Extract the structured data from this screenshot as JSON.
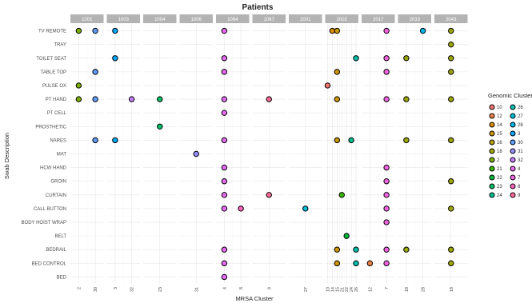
{
  "chart_data": {
    "type": "scatter",
    "title": "Patients",
    "xlabel": "MRSA Cluster",
    "ylabel": "Swab Description",
    "legend_title": "Genomic Cluster",
    "legend_position": "right",
    "grid": true,
    "facets": [
      {
        "label": "1001",
        "x_ticks": [
          "2",
          "30"
        ]
      },
      {
        "label": "1003",
        "x_ticks": [
          "3",
          "32"
        ]
      },
      {
        "label": "1004",
        "x_ticks": [
          "23"
        ]
      },
      {
        "label": "1006",
        "x_ticks": [
          "31"
        ]
      },
      {
        "label": "1064",
        "x_ticks": [
          "4",
          "8"
        ]
      },
      {
        "label": "1067",
        "x_ticks": [
          "9"
        ]
      },
      {
        "label": "2001",
        "x_ticks": [
          "27"
        ]
      },
      {
        "label": "2002",
        "x_ticks": [
          "10",
          "14",
          "15",
          "21",
          "22",
          "24",
          "26"
        ]
      },
      {
        "label": "2017",
        "x_ticks": [
          "12",
          "7"
        ]
      },
      {
        "label": "2033",
        "x_ticks": [
          "18",
          "28"
        ]
      },
      {
        "label": "2043",
        "x_ticks": [
          "18"
        ]
      }
    ],
    "y_categories": [
      "TV REMOTE",
      "TRAY",
      "TOILET SEAT",
      "TABLE TOP",
      "PULSE OX",
      "PT HAND",
      "PT CELL",
      "PROSTHETIC",
      "NARES",
      "MAT",
      "HCW HAND",
      "GROIN",
      "CURTAIN",
      "CALL BUTTON",
      "BODY HOIST WRAP",
      "BELT",
      "BEDRAIL",
      "BED CONTROL",
      "BED"
    ],
    "legend": [
      {
        "label": "10",
        "color": "#F8766D"
      },
      {
        "label": "12",
        "color": "#EE8043"
      },
      {
        "label": "14",
        "color": "#DE8C00"
      },
      {
        "label": "15",
        "color": "#CD9600"
      },
      {
        "label": "16",
        "color": "#B7A000"
      },
      {
        "label": "18",
        "color": "#9DA700"
      },
      {
        "label": "2",
        "color": "#7CAE00"
      },
      {
        "label": "21",
        "color": "#39B600"
      },
      {
        "label": "22",
        "color": "#00BA38"
      },
      {
        "label": "23",
        "color": "#00BE67"
      },
      {
        "label": "24",
        "color": "#00C08B"
      },
      {
        "label": "26",
        "color": "#00C0AA"
      },
      {
        "label": "27",
        "color": "#00BCD8"
      },
      {
        "label": "28",
        "color": "#00B6EB"
      },
      {
        "label": "3",
        "color": "#00A9FF"
      },
      {
        "label": "30",
        "color": "#619CFF"
      },
      {
        "label": "31",
        "color": "#9590FF"
      },
      {
        "label": "32",
        "color": "#C77CFF"
      },
      {
        "label": "4",
        "color": "#E76BF3"
      },
      {
        "label": "7",
        "color": "#F564E3"
      },
      {
        "label": "8",
        "color": "#FF62BC"
      },
      {
        "label": "9",
        "color": "#FF6A98"
      }
    ],
    "points": [
      {
        "facet": "1001",
        "x": "2",
        "y": "TV REMOTE",
        "cluster": "2"
      },
      {
        "facet": "1001",
        "x": "30",
        "y": "TV REMOTE",
        "cluster": "30"
      },
      {
        "facet": "1001",
        "x": "30",
        "y": "TABLE TOP",
        "cluster": "30"
      },
      {
        "facet": "1001",
        "x": "2",
        "y": "PULSE OX",
        "cluster": "2"
      },
      {
        "facet": "1001",
        "x": "2",
        "y": "PT HAND",
        "cluster": "2"
      },
      {
        "facet": "1001",
        "x": "30",
        "y": "PT HAND",
        "cluster": "30"
      },
      {
        "facet": "1001",
        "x": "30",
        "y": "NARES",
        "cluster": "30"
      },
      {
        "facet": "1003",
        "x": "3",
        "y": "TV REMOTE",
        "cluster": "3"
      },
      {
        "facet": "1003",
        "x": "3",
        "y": "TOILET SEAT",
        "cluster": "3"
      },
      {
        "facet": "1003",
        "x": "32",
        "y": "PT HAND",
        "cluster": "32"
      },
      {
        "facet": "1003",
        "x": "3",
        "y": "NARES",
        "cluster": "3"
      },
      {
        "facet": "1004",
        "x": "23",
        "y": "PT HAND",
        "cluster": "23"
      },
      {
        "facet": "1004",
        "x": "23",
        "y": "PROSTHETIC",
        "cluster": "23"
      },
      {
        "facet": "1006",
        "x": "31",
        "y": "MAT",
        "cluster": "31"
      },
      {
        "facet": "1064",
        "x": "4",
        "y": "TV REMOTE",
        "cluster": "4"
      },
      {
        "facet": "1064",
        "x": "4",
        "y": "TOILET SEAT",
        "cluster": "4"
      },
      {
        "facet": "1064",
        "x": "4",
        "y": "TABLE TOP",
        "cluster": "4"
      },
      {
        "facet": "1064",
        "x": "4",
        "y": "PT HAND",
        "cluster": "4"
      },
      {
        "facet": "1064",
        "x": "4",
        "y": "PT CELL",
        "cluster": "4"
      },
      {
        "facet": "1064",
        "x": "4",
        "y": "NARES",
        "cluster": "4"
      },
      {
        "facet": "1064",
        "x": "4",
        "y": "HCW HAND",
        "cluster": "4"
      },
      {
        "facet": "1064",
        "x": "4",
        "y": "GROIN",
        "cluster": "4"
      },
      {
        "facet": "1064",
        "x": "4",
        "y": "CURTAIN",
        "cluster": "4"
      },
      {
        "facet": "1064",
        "x": "4",
        "y": "CALL BUTTON",
        "cluster": "4"
      },
      {
        "facet": "1064",
        "x": "8",
        "y": "CALL BUTTON",
        "cluster": "8"
      },
      {
        "facet": "1064",
        "x": "4",
        "y": "BEDRAIL",
        "cluster": "4"
      },
      {
        "facet": "1064",
        "x": "4",
        "y": "BED CONTROL",
        "cluster": "4"
      },
      {
        "facet": "1064",
        "x": "4",
        "y": "BED",
        "cluster": "4"
      },
      {
        "facet": "1067",
        "x": "9",
        "y": "PT HAND",
        "cluster": "9"
      },
      {
        "facet": "1067",
        "x": "9",
        "y": "CURTAIN",
        "cluster": "9"
      },
      {
        "facet": "2001",
        "x": "27",
        "y": "CALL BUTTON",
        "cluster": "27"
      },
      {
        "facet": "2002",
        "x": "14",
        "y": "TV REMOTE",
        "cluster": "14"
      },
      {
        "facet": "2002",
        "x": "15",
        "y": "TV REMOTE",
        "cluster": "15"
      },
      {
        "facet": "2002",
        "x": "26",
        "y": "TOILET SEAT",
        "cluster": "26"
      },
      {
        "facet": "2002",
        "x": "15",
        "y": "TABLE TOP",
        "cluster": "15"
      },
      {
        "facet": "2002",
        "x": "10",
        "y": "PULSE OX",
        "cluster": "10"
      },
      {
        "facet": "2002",
        "x": "15",
        "y": "PT HAND",
        "cluster": "15"
      },
      {
        "facet": "2002",
        "x": "15",
        "y": "NARES",
        "cluster": "15"
      },
      {
        "facet": "2002",
        "x": "24",
        "y": "NARES",
        "cluster": "24"
      },
      {
        "facet": "2002",
        "x": "21",
        "y": "CURTAIN",
        "cluster": "21"
      },
      {
        "facet": "2002",
        "x": "22",
        "y": "BELT",
        "cluster": "22"
      },
      {
        "facet": "2002",
        "x": "15",
        "y": "BEDRAIL",
        "cluster": "15"
      },
      {
        "facet": "2002",
        "x": "26",
        "y": "BEDRAIL",
        "cluster": "26"
      },
      {
        "facet": "2002",
        "x": "15",
        "y": "BED CONTROL",
        "cluster": "15"
      },
      {
        "facet": "2002",
        "x": "26",
        "y": "BED CONTROL",
        "cluster": "26"
      },
      {
        "facet": "2017",
        "x": "7",
        "y": "TV REMOTE",
        "cluster": "7"
      },
      {
        "facet": "2017",
        "x": "7",
        "y": "TOILET SEAT",
        "cluster": "7"
      },
      {
        "facet": "2017",
        "x": "7",
        "y": "TABLE TOP",
        "cluster": "7"
      },
      {
        "facet": "2017",
        "x": "7",
        "y": "PT HAND",
        "cluster": "7"
      },
      {
        "facet": "2017",
        "x": "7",
        "y": "HCW HAND",
        "cluster": "7"
      },
      {
        "facet": "2017",
        "x": "7",
        "y": "GROIN",
        "cluster": "7"
      },
      {
        "facet": "2017",
        "x": "7",
        "y": "CURTAIN",
        "cluster": "7"
      },
      {
        "facet": "2017",
        "x": "7",
        "y": "CALL BUTTON",
        "cluster": "7"
      },
      {
        "facet": "2017",
        "x": "7",
        "y": "BODY HOIST WRAP",
        "cluster": "7"
      },
      {
        "facet": "2017",
        "x": "7",
        "y": "BEDRAIL",
        "cluster": "7"
      },
      {
        "facet": "2017",
        "x": "12",
        "y": "BED CONTROL",
        "cluster": "12"
      },
      {
        "facet": "2017",
        "x": "7",
        "y": "BED CONTROL",
        "cluster": "7"
      },
      {
        "facet": "2033",
        "x": "28",
        "y": "TV REMOTE",
        "cluster": "28"
      },
      {
        "facet": "2033",
        "x": "18",
        "y": "TOILET SEAT",
        "cluster": "18"
      },
      {
        "facet": "2033",
        "x": "18",
        "y": "PT HAND",
        "cluster": "18"
      },
      {
        "facet": "2033",
        "x": "18",
        "y": "NARES",
        "cluster": "18"
      },
      {
        "facet": "2033",
        "x": "18",
        "y": "BEDRAIL",
        "cluster": "18"
      },
      {
        "facet": "2043",
        "x": "18",
        "y": "TV REMOTE",
        "cluster": "18"
      },
      {
        "facet": "2043",
        "x": "18",
        "y": "TRAY",
        "cluster": "18"
      },
      {
        "facet": "2043",
        "x": "18",
        "y": "TOILET SEAT",
        "cluster": "18"
      },
      {
        "facet": "2043",
        "x": "18",
        "y": "TABLE TOP",
        "cluster": "18"
      },
      {
        "facet": "2043",
        "x": "18",
        "y": "PT HAND",
        "cluster": "18"
      },
      {
        "facet": "2043",
        "x": "18",
        "y": "NARES",
        "cluster": "18"
      },
      {
        "facet": "2043",
        "x": "18",
        "y": "GROIN",
        "cluster": "18"
      },
      {
        "facet": "2043",
        "x": "18",
        "y": "CALL BUTTON",
        "cluster": "18"
      },
      {
        "facet": "2043",
        "x": "18",
        "y": "BEDRAIL",
        "cluster": "18"
      },
      {
        "facet": "2043",
        "x": "18",
        "y": "BED CONTROL",
        "cluster": "18"
      }
    ]
  }
}
